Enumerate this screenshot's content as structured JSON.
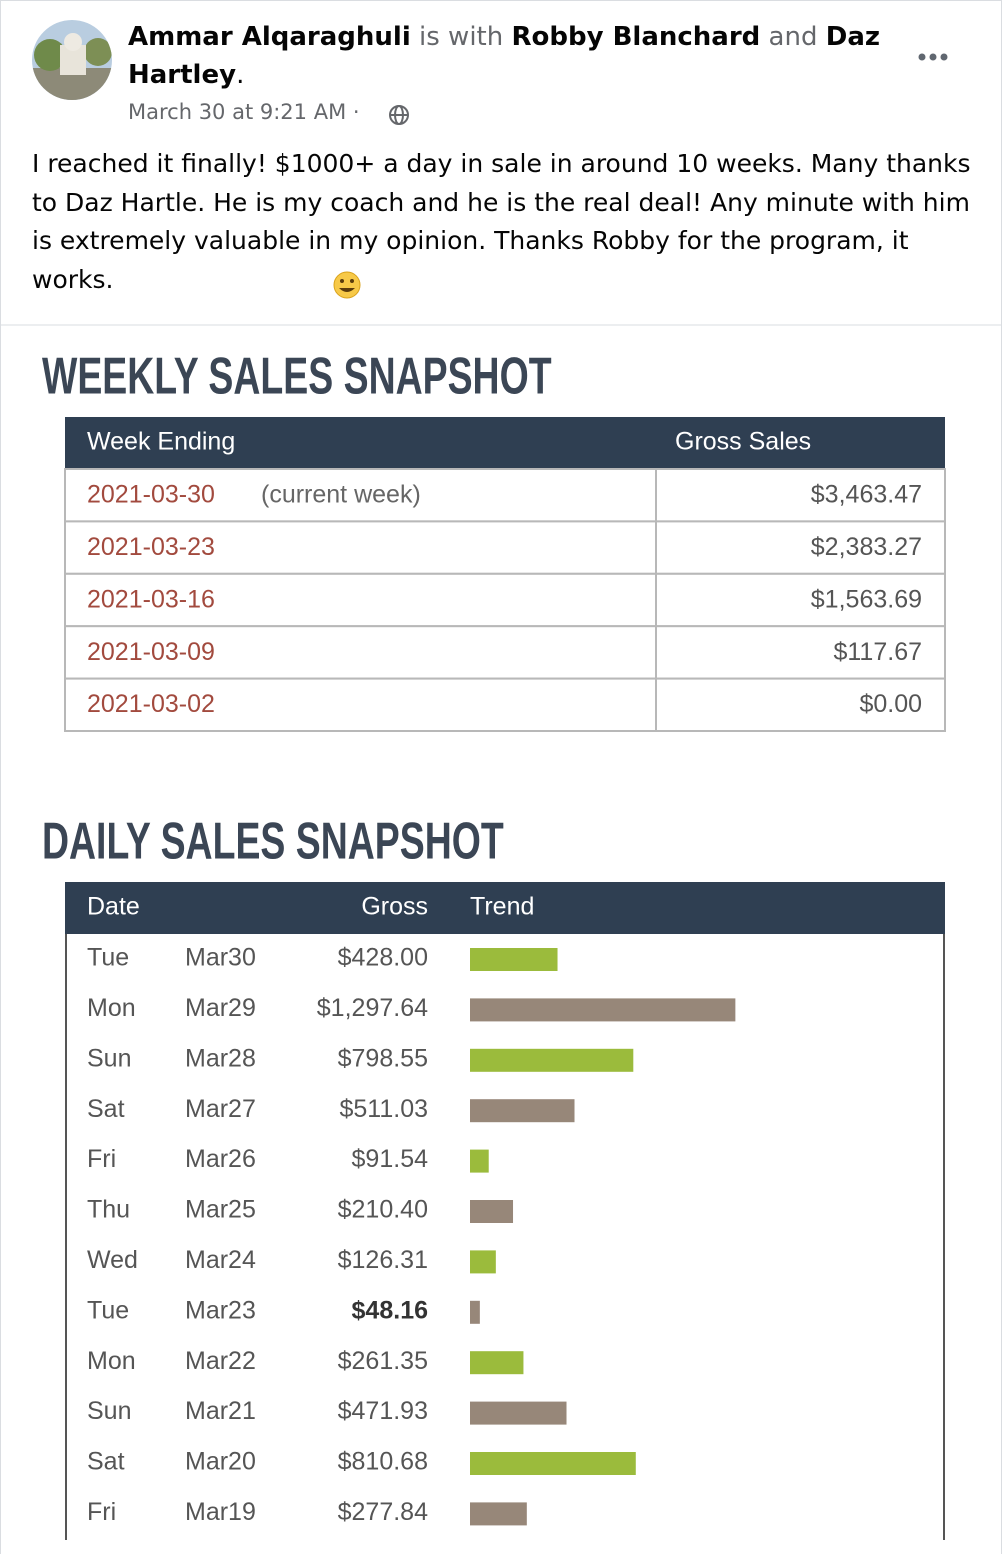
{
  "post": {
    "author": "Ammar Alqaraghuli",
    "with_word": "is with",
    "tagged": [
      "Robby Blanchard",
      "Daz Hartley"
    ],
    "and_word": "and",
    "end": ".",
    "timestamp": "March 30 at 9:21 AM",
    "separator": "·",
    "text": "I reached it finally! $1000+ a day in sale in around 10 weeks. Many thanks to Daz Hartle. He is my coach and he is the real deal! Any minute with him is extremely valuable in my opinion. Thanks Robby for the program, it works."
  },
  "weekly": {
    "title": "WEEKLY SALES SNAPSHOT",
    "headers": [
      "Week Ending",
      "Gross Sales"
    ],
    "rows": [
      {
        "week": "2021-03-30",
        "note": "(current week)",
        "gross": "$3,463.47"
      },
      {
        "week": "2021-03-23",
        "gross": "$2,383.27"
      },
      {
        "week": "2021-03-16",
        "gross": "$1,563.69"
      },
      {
        "week": "2021-03-09",
        "gross": "$117.67"
      },
      {
        "week": "2021-03-02",
        "gross": "$0.00"
      }
    ]
  },
  "daily": {
    "title": "DAILY SALES SNAPSHOT",
    "headers": [
      "Date",
      "Gross",
      "Trend"
    ],
    "rows": [
      {
        "day": "Tue",
        "date": "Mar30"
      },
      {
        "day": "Mon",
        "date": "Mar29"
      },
      {
        "day": "Sun",
        "date": "Mar28"
      },
      {
        "day": "Sat",
        "date": "Mar27"
      },
      {
        "day": "Fri",
        "date": "Mar26"
      },
      {
        "day": "Thu",
        "date": "Mar25"
      },
      {
        "day": "Wed",
        "date": "Mar24"
      },
      {
        "day": "Tue",
        "date": "Mar23"
      },
      {
        "day": "Mon",
        "date": "Mar22"
      },
      {
        "day": "Sun",
        "date": "Mar21"
      },
      {
        "day": "Sat",
        "date": "Mar20"
      },
      {
        "day": "Fri",
        "date": "Mar19"
      }
    ],
    "values": [
      428.0,
      1297.64,
      798.55,
      511.03,
      91.54,
      210.4,
      126.31,
      48.16,
      261.35,
      471.93,
      810.68,
      277.84
    ],
    "value_labels": [
      "$428.00",
      "$1,297.64",
      "$798.55",
      "$511.03",
      "$91.54",
      "$210.40",
      "$126.31",
      "$48.16",
      "$261.35",
      "$471.93",
      "$810.68",
      "$277.84"
    ],
    "bar_colors": [
      "#9bbb3c",
      "#978779"
    ]
  }
}
